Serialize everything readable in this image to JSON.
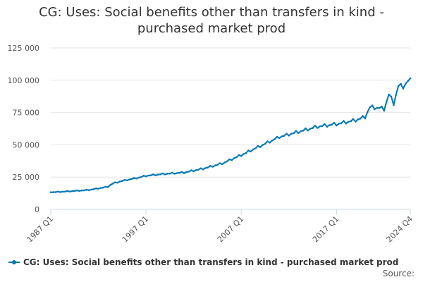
{
  "chart_data": {
    "type": "line",
    "title_lines": [
      "CG: Uses: Social benefits other than transfers in kind -",
      "purchased market prod"
    ],
    "xlabel": "",
    "ylabel": "",
    "ylim": [
      0,
      125000
    ],
    "yticks": [
      0,
      25000,
      50000,
      75000,
      100000,
      125000
    ],
    "ytick_labels": [
      "0",
      "25 000",
      "50 000",
      "75 000",
      "100 000",
      "125 000"
    ],
    "xtick_labels": [
      "1987 Q1",
      "1997 Q1",
      "2007 Q1",
      "2017 Q1",
      "2024 Q4"
    ],
    "x_range": [
      "1987 Q1",
      "2024 Q4"
    ],
    "grid": "horizontal",
    "legend_position": "bottom-left",
    "series": [
      {
        "name": "CG: Uses: Social benefits other than transfers in kind - purchased market prod",
        "color": "#0077b3",
        "anchors": [
          {
            "q": "1987 Q1",
            "v": 13200
          },
          {
            "q": "1989 Q1",
            "v": 14000
          },
          {
            "q": "1991 Q1",
            "v": 15000
          },
          {
            "q": "1993 Q1",
            "v": 17500
          },
          {
            "q": "1993 Q3",
            "v": 20000
          },
          {
            "q": "1994 Q3",
            "v": 22000
          },
          {
            "q": "1995 Q3",
            "v": 23500
          },
          {
            "q": "1996 Q3",
            "v": 25000
          },
          {
            "q": "1997 Q1",
            "v": 26000
          },
          {
            "q": "1999 Q1",
            "v": 27500
          },
          {
            "q": "2001 Q1",
            "v": 28500
          },
          {
            "q": "2003 Q1",
            "v": 31500
          },
          {
            "q": "2005 Q1",
            "v": 35500
          },
          {
            "q": "2007 Q1",
            "v": 42000
          },
          {
            "q": "2009 Q1",
            "v": 49000
          },
          {
            "q": "2011 Q1",
            "v": 56000
          },
          {
            "q": "2013 Q1",
            "v": 60000
          },
          {
            "q": "2015 Q1",
            "v": 64000
          },
          {
            "q": "2017 Q1",
            "v": 66000
          },
          {
            "q": "2019 Q1",
            "v": 69000
          },
          {
            "q": "2020 Q1",
            "v": 71500
          },
          {
            "q": "2020 Q3",
            "v": 79000
          },
          {
            "q": "2021 Q3",
            "v": 78500
          },
          {
            "q": "2022 Q1",
            "v": 77500
          },
          {
            "q": "2022 Q3",
            "v": 89000
          },
          {
            "q": "2023 Q1",
            "v": 82000
          },
          {
            "q": "2023 Q3",
            "v": 95500
          },
          {
            "q": "2024 Q1",
            "v": 95000
          },
          {
            "q": "2024 Q4",
            "v": 101500
          }
        ]
      }
    ]
  },
  "legend": {
    "label": "CG: Uses: Social benefits other than transfers in kind - purchased market prod"
  },
  "source_label": "Source:"
}
